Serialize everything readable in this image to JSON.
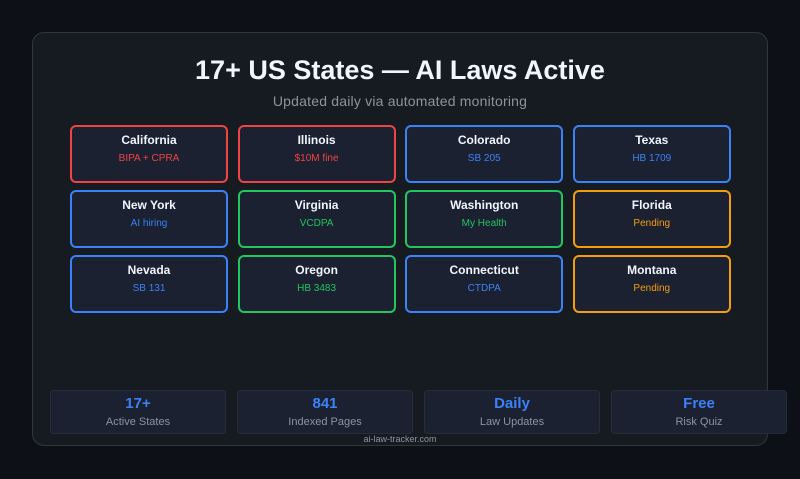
{
  "header": {
    "title": "17+ US States — AI Laws Active",
    "subtitle": "Updated daily via automated monitoring"
  },
  "states": [
    {
      "name": "California",
      "law": "BIPA + CPRA",
      "color": "red"
    },
    {
      "name": "Illinois",
      "law": "$10M fine",
      "color": "red"
    },
    {
      "name": "Colorado",
      "law": "SB 205",
      "color": "blue"
    },
    {
      "name": "Texas",
      "law": "HB 1709",
      "color": "blue"
    },
    {
      "name": "New York",
      "law": "AI hiring",
      "color": "blue"
    },
    {
      "name": "Virginia",
      "law": "VCDPA",
      "color": "green"
    },
    {
      "name": "Washington",
      "law": "My Health",
      "color": "green"
    },
    {
      "name": "Florida",
      "law": "Pending",
      "color": "orange"
    },
    {
      "name": "Nevada",
      "law": "SB 131",
      "color": "blue"
    },
    {
      "name": "Oregon",
      "law": "HB 3483",
      "color": "green"
    },
    {
      "name": "Connecticut",
      "law": "CTDPA",
      "color": "blue"
    },
    {
      "name": "Montana",
      "law": "Pending",
      "color": "orange"
    }
  ],
  "stats": [
    {
      "value": "17+",
      "label": "Active States"
    },
    {
      "value": "841",
      "label": "Indexed Pages"
    },
    {
      "value": "Daily",
      "label": "Law Updates"
    },
    {
      "value": "Free",
      "label": "Risk Quiz"
    }
  ],
  "footer": {
    "domain": "ai-law-tracker.com"
  },
  "colors": {
    "red": "#ef4444",
    "blue": "#3b82f6",
    "green": "#22c55e",
    "orange": "#f59e0b"
  }
}
